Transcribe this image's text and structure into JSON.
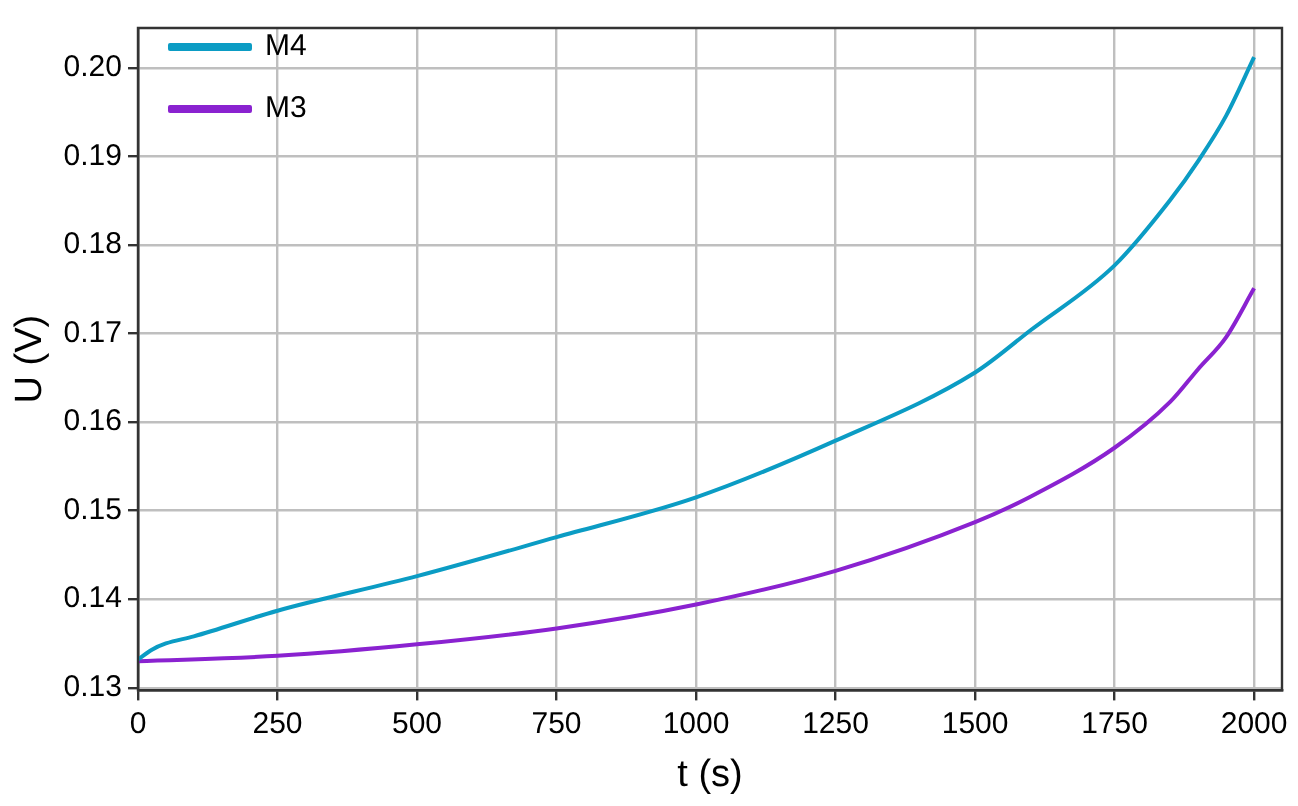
{
  "chart_data": {
    "type": "line",
    "xlabel": "t (s)",
    "ylabel": "U (V)",
    "xlim": [
      0,
      2050
    ],
    "xticks": [
      0,
      250,
      500,
      750,
      1000,
      1250,
      1500,
      1750,
      2000
    ],
    "ylim": [
      0.1297,
      0.2045
    ],
    "yticks": [
      0.13,
      0.14,
      0.15,
      0.16,
      0.17,
      0.18,
      0.19,
      {
        "value": 0.2,
        "label": "0.20"
      }
    ],
    "grid": true,
    "legend": "top left",
    "marker": "none",
    "line_style": "solid",
    "series": [
      {
        "name": "M4",
        "color": "#0b9cc4",
        "x": [
          0,
          25,
          50,
          100,
          250,
          500,
          750,
          1000,
          1250,
          1500,
          1600,
          1750,
          1850,
          1900,
          1950,
          2000
        ],
        "values": [
          0.1332,
          0.1343,
          0.135,
          0.1358,
          0.1387,
          0.1426,
          0.147,
          0.1515,
          0.1579,
          0.1656,
          0.1704,
          0.1777,
          0.1851,
          0.1895,
          0.1946,
          0.2012
        ]
      },
      {
        "name": "M3",
        "color": "#8a22d0",
        "x": [
          0,
          250,
          500,
          750,
          1000,
          1250,
          1500,
          1600,
          1750,
          1850,
          1900,
          1950,
          2000
        ],
        "values": [
          0.133,
          0.1336,
          0.1349,
          0.1367,
          0.1394,
          0.1432,
          0.1487,
          0.1516,
          0.1571,
          0.1623,
          0.166,
          0.1696,
          0.1751
        ]
      }
    ]
  }
}
